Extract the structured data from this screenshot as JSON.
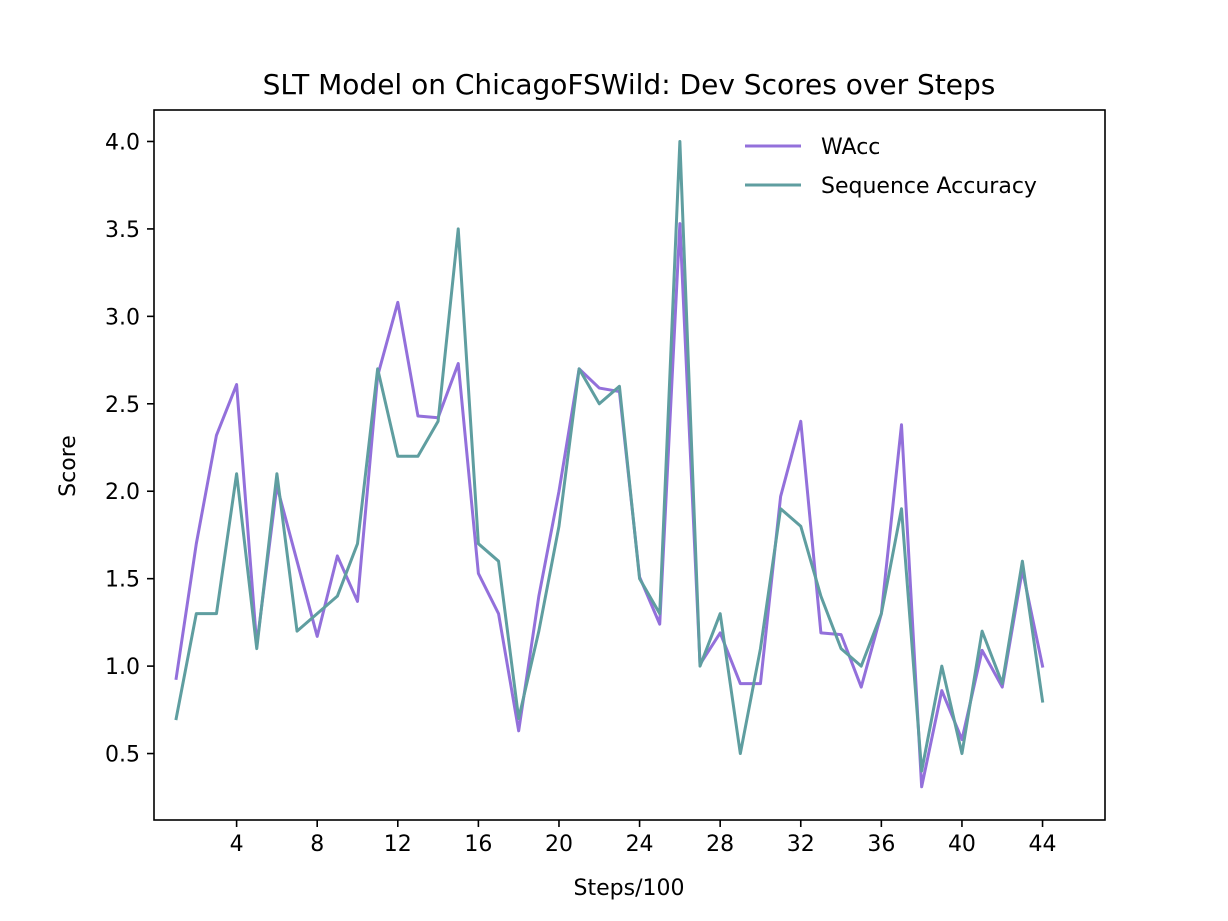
{
  "chart_data": {
    "type": "line",
    "title": "SLT Model on ChicagoFSWild: Dev Scores over Steps",
    "xlabel": "Steps/100",
    "ylabel": "Score",
    "xlim": [
      -0.1,
      47.1
    ],
    "ylim": [
      0.12,
      4.18
    ],
    "xticks": [
      4,
      8,
      12,
      16,
      20,
      24,
      28,
      32,
      36,
      40,
      44
    ],
    "xtick_labels": [
      "4",
      "8",
      "12",
      "16",
      "20",
      "24",
      "28",
      "32",
      "36",
      "40",
      "44"
    ],
    "yticks": [
      0.5,
      1.0,
      1.5,
      2.0,
      2.5,
      3.0,
      3.5,
      4.0
    ],
    "ytick_labels": [
      "0.5",
      "1.0",
      "1.5",
      "2.0",
      "2.5",
      "3.0",
      "3.5",
      "4.0"
    ],
    "grid": false,
    "legend_position": "top-right",
    "x": [
      1,
      2,
      3,
      4,
      5,
      6,
      7,
      8,
      9,
      10,
      11,
      12,
      13,
      14,
      15,
      16,
      17,
      18,
      19,
      20,
      21,
      22,
      23,
      24,
      25,
      26,
      27,
      28,
      29,
      30,
      31,
      32,
      33,
      34,
      35,
      36,
      37,
      38,
      39,
      40,
      41,
      42,
      43,
      44
    ],
    "series": [
      {
        "name": "WAcc",
        "color": "#9370db",
        "values": [
          0.93,
          1.7,
          2.32,
          2.61,
          1.12,
          2.03,
          1.6,
          1.17,
          1.63,
          1.37,
          2.66,
          3.08,
          2.43,
          2.42,
          2.73,
          1.53,
          1.3,
          0.63,
          1.4,
          2.0,
          2.7,
          2.59,
          2.57,
          1.51,
          1.24,
          3.53,
          1.01,
          1.19,
          0.9,
          0.9,
          1.97,
          2.4,
          1.19,
          1.18,
          0.88,
          1.3,
          2.38,
          0.31,
          0.86,
          0.58,
          1.09,
          0.88,
          1.55,
          1.0
        ]
      },
      {
        "name": "Sequence Accuracy",
        "color": "#5f9ea0",
        "values": [
          0.7,
          1.3,
          1.3,
          2.1,
          1.1,
          2.1,
          1.2,
          1.3,
          1.4,
          1.7,
          2.7,
          2.2,
          2.2,
          2.4,
          3.5,
          1.7,
          1.6,
          0.7,
          1.2,
          1.8,
          2.7,
          2.5,
          2.6,
          1.5,
          1.3,
          4.0,
          1.0,
          1.3,
          0.5,
          1.1,
          1.9,
          1.8,
          1.4,
          1.1,
          1.0,
          1.3,
          1.9,
          0.4,
          1.0,
          0.5,
          1.2,
          0.9,
          1.6,
          0.8
        ]
      }
    ]
  }
}
